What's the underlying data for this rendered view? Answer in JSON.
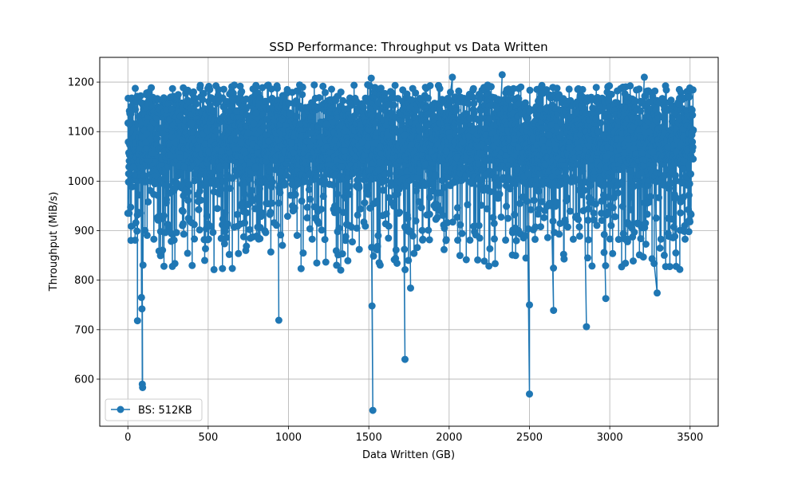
{
  "chart_data": {
    "type": "line",
    "title": "SSD Performance: Throughput vs Data Written",
    "xlabel": "Data Written (GB)",
    "ylabel": "Throughput (MiB/s)",
    "xlim": [
      -175,
      3675
    ],
    "ylim": [
      505,
      1250
    ],
    "x_ticks": [
      0,
      500,
      1000,
      1500,
      2000,
      2500,
      3000,
      3500
    ],
    "y_ticks": [
      600,
      700,
      800,
      900,
      1000,
      1100,
      1200
    ],
    "x_tick_labels": [
      "0",
      "500",
      "1000",
      "1500",
      "2000",
      "2500",
      "3000",
      "3500"
    ],
    "y_tick_labels": [
      "600",
      "700",
      "800",
      "900",
      "1000",
      "1100",
      "1200"
    ],
    "grid": true,
    "legend_position": "lower-left",
    "series": [
      {
        "name": "BS: 512KB",
        "color": "#1f77b4",
        "marker": "circle",
        "x_range": [
          0,
          3520
        ],
        "sample_count": 3520,
        "band": [
          1040,
          1170
        ],
        "notable_points": [
          {
            "x": 60,
            "y": 718
          },
          {
            "x": 85,
            "y": 765
          },
          {
            "x": 88,
            "y": 742
          },
          {
            "x": 90,
            "y": 590
          },
          {
            "x": 92,
            "y": 583
          },
          {
            "x": 940,
            "y": 719
          },
          {
            "x": 1515,
            "y": 1208
          },
          {
            "x": 1520,
            "y": 748
          },
          {
            "x": 1525,
            "y": 537
          },
          {
            "x": 1725,
            "y": 640
          },
          {
            "x": 1760,
            "y": 784
          },
          {
            "x": 2020,
            "y": 1210
          },
          {
            "x": 2330,
            "y": 1215
          },
          {
            "x": 2500,
            "y": 750
          },
          {
            "x": 2500,
            "y": 570
          },
          {
            "x": 2650,
            "y": 739
          },
          {
            "x": 2855,
            "y": 706
          },
          {
            "x": 2975,
            "y": 763
          },
          {
            "x": 3215,
            "y": 1210
          },
          {
            "x": 3295,
            "y": 774
          }
        ]
      }
    ]
  }
}
